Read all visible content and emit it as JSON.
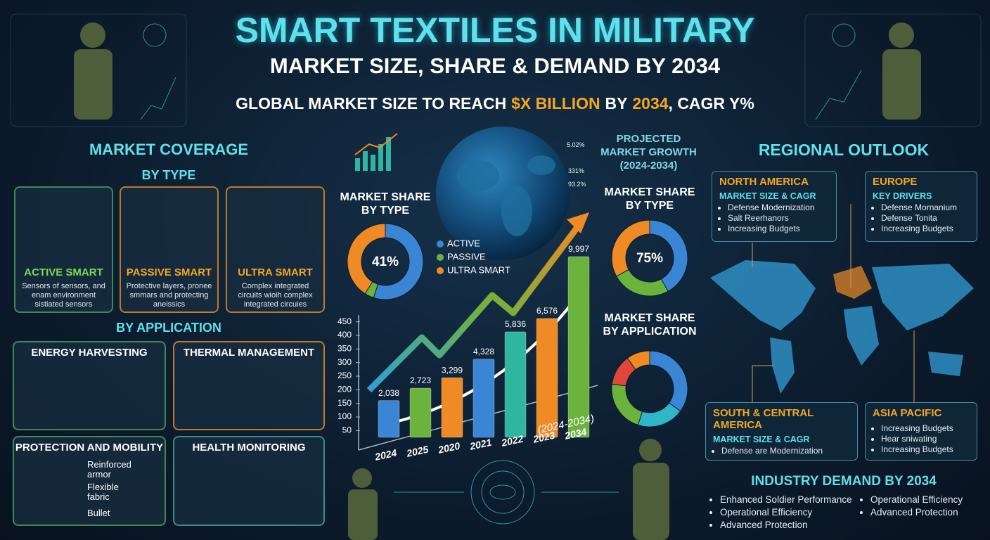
{
  "header": {
    "title": "SMART TEXTILES IN MILITARY",
    "subtitle": "MARKET SIZE, SHARE & DEMAND BY 2034",
    "tagline": [
      {
        "text": "GLOBAL MARKET SIZE TO REACH",
        "color": "#ffffff"
      },
      {
        "text": "$X BILLION",
        "color": "#f5a623"
      },
      {
        "text": "BY",
        "color": "#ffffff"
      },
      {
        "text": "2034",
        "color": "#f5a623"
      },
      {
        "text": ", CAGR Y%",
        "color": "#ffffff"
      }
    ]
  },
  "coverage": {
    "title": "MARKET COVERAGE",
    "by_type": "BY TYPE",
    "types": [
      {
        "name": "ACTIVE SMART",
        "description": "Sensors of sensors, and enam environment sistiated sensors",
        "color": "#7ed957"
      },
      {
        "name": "PASSIVE SMART",
        "description": "Protective layers, pronee smmars and protecting aneissics",
        "color": "#f5a623"
      },
      {
        "name": "ULTRA SMART",
        "description": "Complex integrated circuits wioih complex integrated circuies",
        "color": "#f5a623"
      }
    ],
    "by_application": "BY APPLICATION",
    "applications": [
      {
        "name": "ENERGY HARVESTING"
      },
      {
        "name": "THERMAL MANAGEMENT"
      },
      {
        "name": "PROTECTION AND MOBILITY",
        "labels": [
          "Reinforced armor",
          "Flexible fabric",
          "Bullet"
        ]
      },
      {
        "name": "HEALTH MONITORING"
      }
    ]
  },
  "center": {
    "growth_title": [
      "PROJECTED",
      "MARKET GROWTH",
      "(2024-2034)"
    ],
    "globe_labels": [
      "5.02%",
      "331%",
      "93.2%"
    ]
  },
  "chart_data": [
    {
      "type": "donut",
      "title": [
        "MARKET SHARE",
        "BY TYPE"
      ],
      "categories": [
        "ACTIVE",
        "PASSIVE",
        "ULTRA SMART"
      ],
      "values": [
        55,
        4,
        41
      ],
      "value_labels": [
        null,
        null,
        "41%"
      ],
      "colors": [
        "#3a86d4",
        "#6cb33e",
        "#f08a24"
      ],
      "legend": true
    },
    {
      "type": "donut",
      "title": [
        "MARKET SHARE",
        "BY TYPE"
      ],
      "values": [
        42,
        25,
        33
      ],
      "colors": [
        "#3a86d4",
        "#6cb33e",
        "#f08a24"
      ],
      "center_label": "75%"
    },
    {
      "type": "donut",
      "title": [
        "MARKET SHARE",
        "BY APPLICATION"
      ],
      "values": [
        35,
        20,
        22,
        13,
        10
      ],
      "colors": [
        "#3a86d4",
        "#2fb6c9",
        "#6cb33e",
        "#e0473a",
        "#f08a24"
      ]
    },
    {
      "type": "bar",
      "categories": [
        "2024",
        "2025",
        "2020",
        "2021",
        "2022",
        "2023",
        "2034"
      ],
      "values": [
        2038,
        2723,
        3299,
        4328,
        5836,
        6576,
        9997
      ],
      "value_labels": [
        "2,038",
        "2,723",
        "3,299",
        "4,328",
        "5,836",
        "6,576",
        "9,997"
      ],
      "colors": [
        "#3a86d4",
        "#6cb33e",
        "#f08a24",
        "#3a86d4",
        "#2fb6a0",
        "#f08a24",
        "#6cb33e"
      ],
      "ylim": [
        0,
        10500
      ],
      "y2lim": [
        25,
        475
      ],
      "y2ticks": [
        50,
        100,
        150,
        200,
        250,
        300,
        350,
        400,
        450
      ],
      "note": "(2024-2034)"
    }
  ],
  "regional": {
    "title": "REGIONAL OUTLOOK",
    "boxes": [
      {
        "name": "NORTH AMERICA",
        "heading": "MARKET SIZE & CAGR",
        "items": [
          "Defense Modernization",
          "Salt Reerhanors",
          "Increasing Budgets"
        ]
      },
      {
        "name": "EUROPE",
        "heading": "KEY DRIVERS",
        "items": [
          "Defense Mornanium",
          "Defense Tonita",
          "Increasing Budgets"
        ]
      },
      {
        "name": "SOUTH & CENTRAL AMERICA",
        "heading": "MARKET SIZE & CAGR",
        "items": [
          "Defense are Modernization"
        ]
      },
      {
        "name": "ASIA PACIFIC",
        "items": [
          "Increasing Budgets",
          "Hear sniwating",
          "Increasing Budgets"
        ]
      }
    ]
  },
  "demand": {
    "title": "INDUSTRY DEMAND BY 2034",
    "columns": [
      [
        "Enhanced Soldier Performance",
        "Operational Efficiency",
        "Advanced Protection"
      ],
      [
        "Operational Efficiency",
        "Advanced Protection"
      ]
    ]
  }
}
